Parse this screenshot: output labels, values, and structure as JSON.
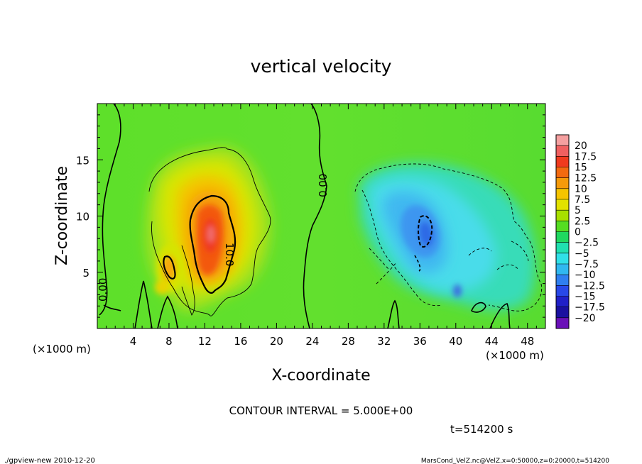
{
  "chart_data": {
    "type": "heatmap",
    "title": "vertical velocity",
    "xlabel": "X-coordinate",
    "ylabel": "Z-coordinate",
    "x_unit": "(×1000 m)",
    "y_unit": "(×1000 m)",
    "xlim": [
      0,
      50
    ],
    "ylim": [
      0,
      20
    ],
    "x_ticks": [
      "4",
      "8",
      "12",
      "16",
      "20",
      "24",
      "28",
      "32",
      "36",
      "40",
      "44",
      "48"
    ],
    "y_ticks": [
      "5",
      "10",
      "15"
    ],
    "colorbar": {
      "levels": [
        "20",
        "17.5",
        "15",
        "12.5",
        "10",
        "7.5",
        "5",
        "2.5",
        "0",
        "−2.5",
        "−5",
        "−7.5",
        "−10",
        "−12.5",
        "−15",
        "−17.5",
        "−20"
      ],
      "colors": [
        "#f5a0a0",
        "#f06060",
        "#f03a1e",
        "#f36a10",
        "#f59a0a",
        "#f5c400",
        "#e2e200",
        "#a8e000",
        "#55dd22",
        "#20d860",
        "#20e0b0",
        "#30e0e8",
        "#30b8f0",
        "#2f7ff0",
        "#2848e8",
        "#2020c8",
        "#1a10a0",
        "#6a10b8"
      ]
    },
    "contour_labels": [
      "0.00",
      "0.00",
      "10.0"
    ],
    "features": [
      {
        "name": "updraft",
        "x": 12.5,
        "z": 8,
        "peak": 17.5
      },
      {
        "name": "downdraft",
        "x": 36.5,
        "z": 9,
        "peak": -12.5
      }
    ],
    "grid": false,
    "legend": "right"
  },
  "footer": {
    "contour_interval": "CONTOUR INTERVAL = 5.000E+00",
    "time": "t=514200 s",
    "program": "./gpview-new  2010-12-20",
    "source": "MarsCond_VelZ.nc@VelZ,x=0:50000,z=0:20000,t=514200"
  }
}
